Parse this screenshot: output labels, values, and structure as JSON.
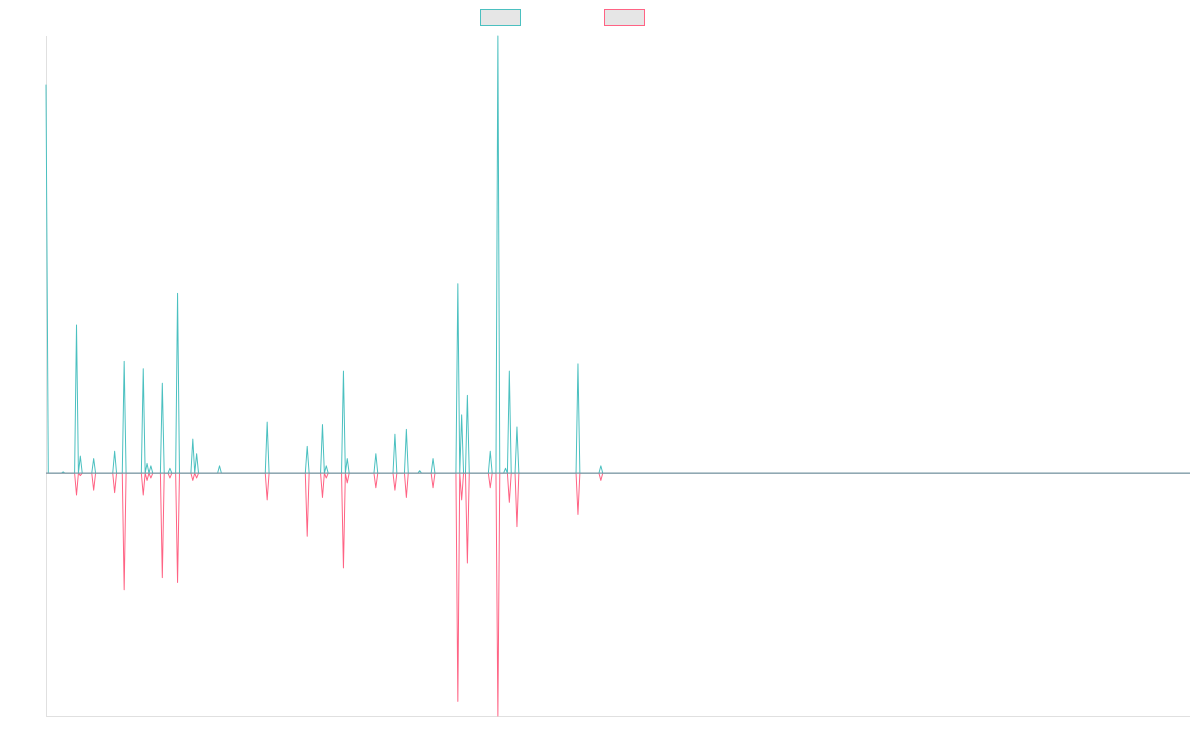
{
  "chart_data": {
    "type": "line",
    "title": "",
    "xlabel": "",
    "ylabel": "",
    "grid": false,
    "legend": "top-center",
    "x_domain": [
      0,
      300
    ],
    "ylim": [
      -100,
      180
    ],
    "series": [
      {
        "key": "teal",
        "color": "#4bc0c0",
        "fill": "#e6e6e6",
        "points": [
          [
            0,
            160
          ],
          [
            0.6,
            0
          ],
          [
            4,
            0
          ],
          [
            4.5,
            0.5
          ],
          [
            5,
            0
          ],
          [
            7.5,
            0
          ],
          [
            8,
            61
          ],
          [
            8.5,
            0
          ],
          [
            9,
            7
          ],
          [
            9.5,
            0
          ],
          [
            12,
            0
          ],
          [
            12.5,
            6
          ],
          [
            13,
            0
          ],
          [
            17.5,
            0
          ],
          [
            18,
            9
          ],
          [
            18.5,
            0
          ],
          [
            20,
            0
          ],
          [
            20.5,
            46
          ],
          [
            21,
            0
          ],
          [
            25,
            0
          ],
          [
            25.5,
            43
          ],
          [
            26,
            0
          ],
          [
            26.5,
            4
          ],
          [
            27,
            0
          ],
          [
            27.5,
            3
          ],
          [
            28,
            0
          ],
          [
            30,
            0
          ],
          [
            30.5,
            37
          ],
          [
            31,
            0
          ],
          [
            32,
            0
          ],
          [
            32.5,
            2
          ],
          [
            33,
            0
          ],
          [
            34,
            0
          ],
          [
            34.5,
            74
          ],
          [
            35,
            0
          ],
          [
            38,
            0
          ],
          [
            38.5,
            14
          ],
          [
            39,
            0
          ],
          [
            39.5,
            8
          ],
          [
            40,
            0
          ],
          [
            45,
            0
          ],
          [
            45.5,
            3
          ],
          [
            46,
            0
          ],
          [
            57.5,
            0
          ],
          [
            58,
            21
          ],
          [
            58.5,
            0
          ],
          [
            68,
            0
          ],
          [
            68.5,
            11
          ],
          [
            69,
            0
          ],
          [
            72,
            0
          ],
          [
            72.5,
            20
          ],
          [
            73,
            0
          ],
          [
            73.5,
            3
          ],
          [
            74,
            0
          ],
          [
            77.5,
            0
          ],
          [
            78,
            42
          ],
          [
            78.5,
            0
          ],
          [
            79,
            6
          ],
          [
            79.5,
            0
          ],
          [
            86,
            0
          ],
          [
            86.5,
            8
          ],
          [
            87,
            0
          ],
          [
            91,
            0
          ],
          [
            91.5,
            16
          ],
          [
            92,
            0
          ],
          [
            94,
            0
          ],
          [
            94.5,
            18
          ],
          [
            95,
            0
          ],
          [
            97.5,
            0
          ],
          [
            98,
            1
          ],
          [
            98.5,
            0
          ],
          [
            101,
            0
          ],
          [
            101.5,
            6
          ],
          [
            102,
            0
          ],
          [
            107.5,
            0
          ],
          [
            108,
            78
          ],
          [
            108.5,
            0
          ],
          [
            109,
            24
          ],
          [
            109.5,
            0
          ],
          [
            110,
            0
          ],
          [
            110.5,
            32
          ],
          [
            111,
            0
          ],
          [
            116,
            0
          ],
          [
            116.5,
            9
          ],
          [
            117,
            0
          ],
          [
            118,
            0
          ],
          [
            118.5,
            180
          ],
          [
            119,
            0
          ],
          [
            120,
            0
          ],
          [
            120.5,
            2
          ],
          [
            121,
            0
          ],
          [
            121.5,
            42
          ],
          [
            122,
            0
          ],
          [
            123,
            0
          ],
          [
            123.5,
            19
          ],
          [
            124,
            0
          ],
          [
            139,
            0
          ],
          [
            139.5,
            45
          ],
          [
            140,
            0
          ],
          [
            145,
            0
          ],
          [
            145.5,
            3
          ],
          [
            146,
            0
          ],
          [
            300,
            0
          ]
        ]
      },
      {
        "key": "pink",
        "color": "#ff6384",
        "fill": "#e6e6e6",
        "points": [
          [
            0,
            0
          ],
          [
            7.5,
            0
          ],
          [
            8,
            -9
          ],
          [
            8.5,
            0
          ],
          [
            9,
            -1
          ],
          [
            9.5,
            0
          ],
          [
            12,
            0
          ],
          [
            12.5,
            -7
          ],
          [
            13,
            0
          ],
          [
            17.5,
            0
          ],
          [
            18,
            -8
          ],
          [
            18.5,
            0
          ],
          [
            20,
            0
          ],
          [
            20.5,
            -48
          ],
          [
            21,
            0
          ],
          [
            25,
            0
          ],
          [
            25.5,
            -9
          ],
          [
            26,
            0
          ],
          [
            26.5,
            -3
          ],
          [
            27,
            0
          ],
          [
            27.5,
            -2
          ],
          [
            28,
            0
          ],
          [
            30,
            0
          ],
          [
            30.5,
            -43
          ],
          [
            31,
            0
          ],
          [
            32,
            0
          ],
          [
            32.5,
            -2
          ],
          [
            33,
            0
          ],
          [
            34,
            0
          ],
          [
            34.5,
            -45
          ],
          [
            35,
            0
          ],
          [
            38,
            0
          ],
          [
            38.5,
            -3
          ],
          [
            39,
            0
          ],
          [
            39.5,
            -2
          ],
          [
            40,
            0
          ],
          [
            57.5,
            0
          ],
          [
            58,
            -11
          ],
          [
            58.5,
            0
          ],
          [
            68,
            0
          ],
          [
            68.5,
            -26
          ],
          [
            69,
            0
          ],
          [
            72,
            0
          ],
          [
            72.5,
            -10
          ],
          [
            73,
            0
          ],
          [
            73.5,
            -2
          ],
          [
            74,
            0
          ],
          [
            77.5,
            0
          ],
          [
            78,
            -39
          ],
          [
            78.5,
            0
          ],
          [
            79,
            -4
          ],
          [
            79.5,
            0
          ],
          [
            86,
            0
          ],
          [
            86.5,
            -6
          ],
          [
            87,
            0
          ],
          [
            91,
            0
          ],
          [
            91.5,
            -7
          ],
          [
            92,
            0
          ],
          [
            94,
            0
          ],
          [
            94.5,
            -10
          ],
          [
            95,
            0
          ],
          [
            101,
            0
          ],
          [
            101.5,
            -6
          ],
          [
            102,
            0
          ],
          [
            107.5,
            0
          ],
          [
            108,
            -94
          ],
          [
            108.5,
            0
          ],
          [
            109,
            -11
          ],
          [
            109.5,
            0
          ],
          [
            110,
            0
          ],
          [
            110.5,
            -37
          ],
          [
            111,
            0
          ],
          [
            116,
            0
          ],
          [
            116.5,
            -6
          ],
          [
            117,
            0
          ],
          [
            118,
            0
          ],
          [
            118.5,
            -100
          ],
          [
            119,
            0
          ],
          [
            121,
            0
          ],
          [
            121.5,
            -12
          ],
          [
            122,
            0
          ],
          [
            123,
            0
          ],
          [
            123.5,
            -22
          ],
          [
            124,
            0
          ],
          [
            139,
            0
          ],
          [
            139.5,
            -17
          ],
          [
            140,
            0
          ],
          [
            145,
            0
          ],
          [
            145.5,
            -3
          ],
          [
            146,
            0
          ],
          [
            300,
            0
          ]
        ]
      }
    ]
  }
}
